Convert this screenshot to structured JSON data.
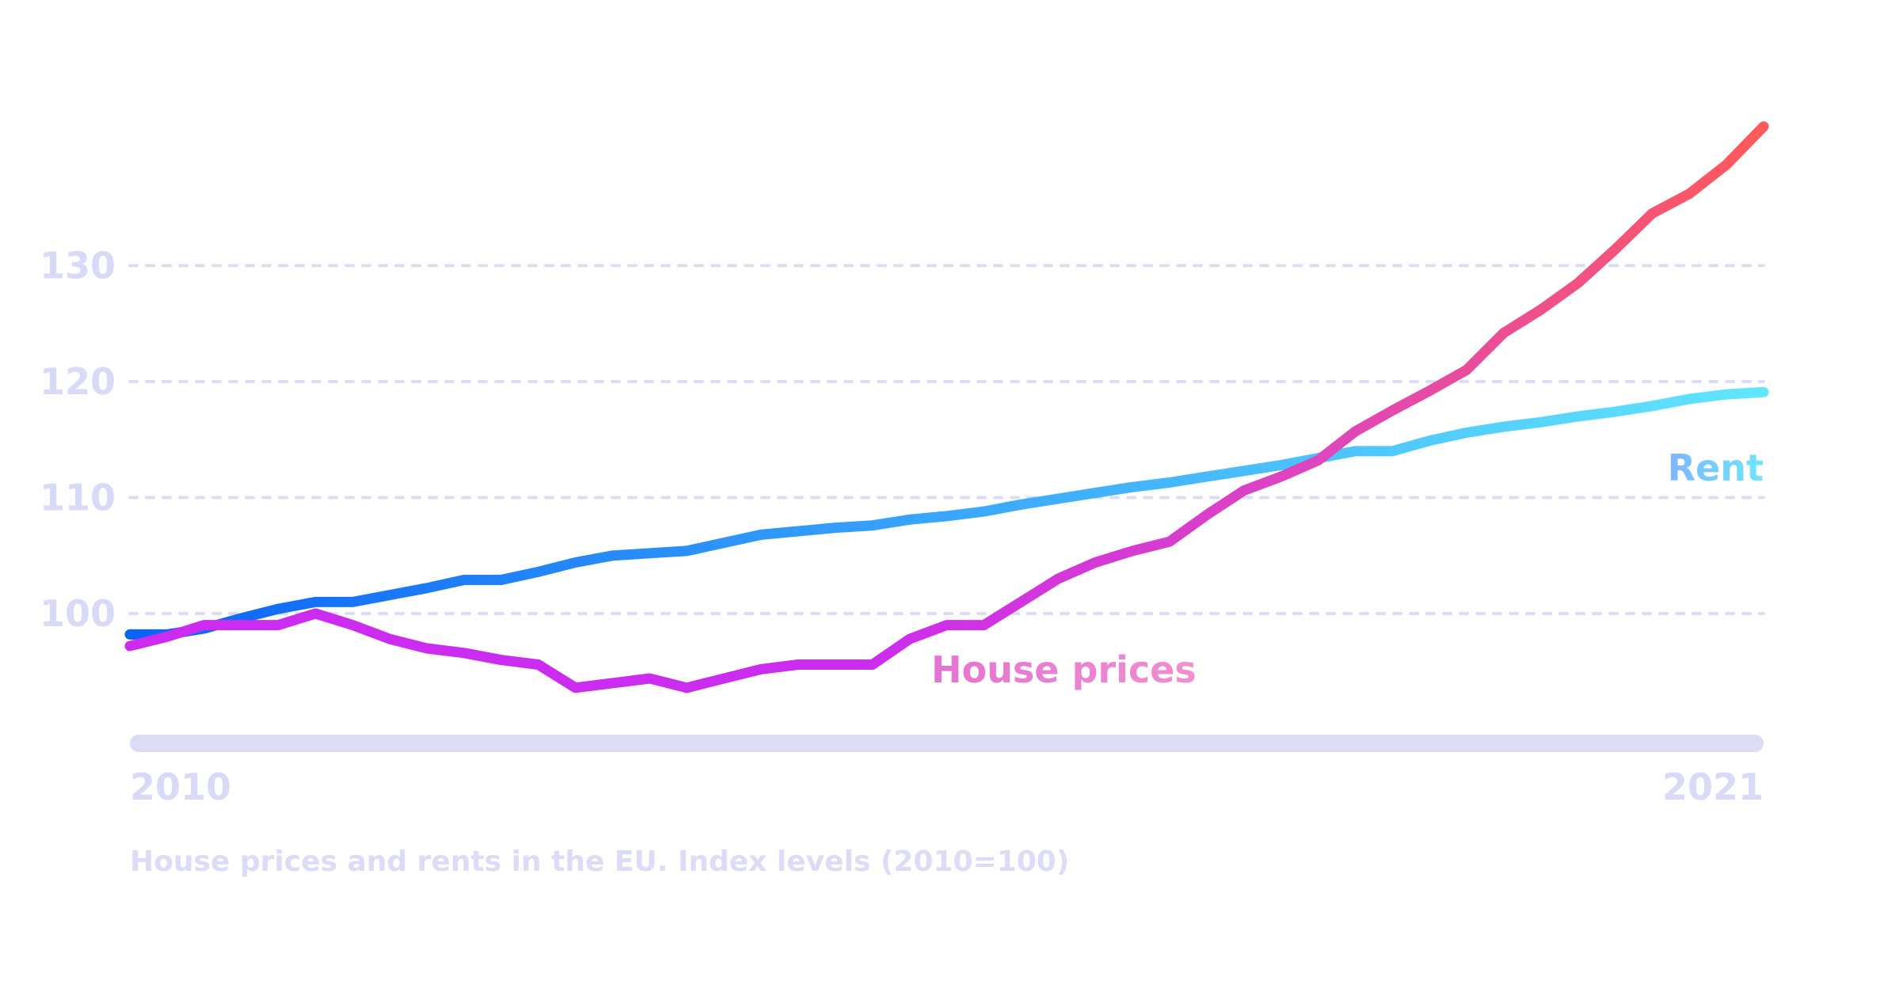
{
  "caption": "House prices and rents in the EU. Index levels (2010=100)",
  "colors": {
    "grid": "#dcdcf5",
    "axis_bar": "#dcdcf5",
    "tick_text": "#d9d9f8",
    "caption_text": "#dcdcf7",
    "house_gradient": [
      "#cc2cf0",
      "#dd45bf",
      "#ff5a5a"
    ],
    "rent_gradient": [
      "#0a63f5",
      "#3aa6fb",
      "#62e6fd"
    ],
    "house_label_gradient": [
      "#e473d2",
      "#f08fd0"
    ],
    "rent_label_gradient": [
      "#7fb6ff",
      "#6ee6fb"
    ]
  },
  "chart_data": {
    "type": "line",
    "title": "",
    "xlabel": "",
    "ylabel": "",
    "xlim": [
      2010,
      2021
    ],
    "ylim": [
      89,
      142
    ],
    "x_ticks": [
      "2010",
      "2021"
    ],
    "y_ticks": [
      "100",
      "110",
      "120",
      "130"
    ],
    "grid": true,
    "series": [
      {
        "name": "Rent",
        "x": [
          2010.0,
          2010.25,
          2010.5,
          2010.75,
          2011.0,
          2011.25,
          2011.5,
          2011.75,
          2012.0,
          2012.25,
          2012.5,
          2012.75,
          2013.0,
          2013.25,
          2013.5,
          2013.75,
          2014.0,
          2014.25,
          2014.5,
          2014.75,
          2015.0,
          2015.25,
          2015.5,
          2015.75,
          2016.0,
          2016.25,
          2016.5,
          2016.75,
          2017.0,
          2017.25,
          2017.5,
          2017.75,
          2018.0,
          2018.25,
          2018.5,
          2018.75,
          2019.0,
          2019.25,
          2019.5,
          2019.75,
          2020.0,
          2020.25,
          2020.5,
          2020.75,
          2021.0
        ],
        "values": [
          98.2,
          98.2,
          98.7,
          99.6,
          100.4,
          101.0,
          101.0,
          101.6,
          102.2,
          102.9,
          102.9,
          103.6,
          104.4,
          105.0,
          105.2,
          105.4,
          106.1,
          106.8,
          107.1,
          107.4,
          107.6,
          108.1,
          108.4,
          108.8,
          109.4,
          109.9,
          110.4,
          110.9,
          111.3,
          111.8,
          112.3,
          112.8,
          113.4,
          114.0,
          114.0,
          114.9,
          115.6,
          116.1,
          116.5,
          117.0,
          117.4,
          117.9,
          118.5,
          118.9,
          119.1
        ],
        "color": "#3aa6fb"
      },
      {
        "name": "House prices",
        "x": [
          2010.0,
          2010.25,
          2010.5,
          2010.75,
          2011.0,
          2011.25,
          2011.5,
          2011.75,
          2012.0,
          2012.25,
          2012.5,
          2012.75,
          2013.0,
          2013.25,
          2013.5,
          2013.75,
          2014.0,
          2014.25,
          2014.5,
          2014.75,
          2015.0,
          2015.25,
          2015.5,
          2015.75,
          2016.0,
          2016.25,
          2016.5,
          2016.75,
          2017.0,
          2017.25,
          2017.5,
          2017.75,
          2018.0,
          2018.25,
          2018.5,
          2018.75,
          2019.0,
          2019.25,
          2019.5,
          2019.75,
          2020.0,
          2020.25,
          2020.5,
          2020.75,
          2021.0
        ],
        "values": [
          97.2,
          98.0,
          99.0,
          99.0,
          99.0,
          100.0,
          99.0,
          97.8,
          97.0,
          96.6,
          96.0,
          95.6,
          93.6,
          94.0,
          94.4,
          93.6,
          94.4,
          95.2,
          95.6,
          95.6,
          95.6,
          97.8,
          99.0,
          99.0,
          101.0,
          103.0,
          104.4,
          105.4,
          106.2,
          108.5,
          110.6,
          111.8,
          113.2,
          115.7,
          117.5,
          119.2,
          121.0,
          124.2,
          126.2,
          128.5,
          131.4,
          134.5,
          136.2,
          138.7,
          142.0
        ],
        "color": "#dd45bf"
      }
    ],
    "annotations": [
      {
        "text": "Rent",
        "series": "Rent"
      },
      {
        "text": "House prices",
        "series": "House prices"
      }
    ]
  }
}
